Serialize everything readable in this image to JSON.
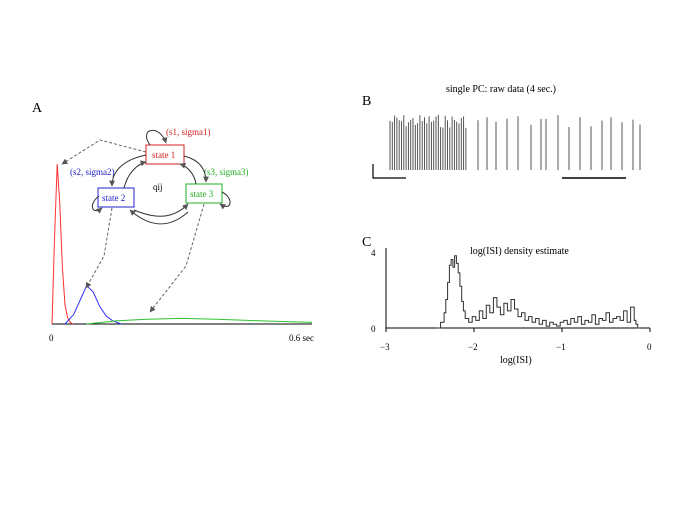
{
  "panel_a": {
    "label": "A",
    "states": [
      {
        "name": "state 1",
        "params": "(s1, sigma1)",
        "color": "#d42020"
      },
      {
        "name": "state 2",
        "params": "(s2, sigma2)",
        "color": "#2020c8"
      },
      {
        "name": "state 3",
        "params": "(s3, sigma3)",
        "color": "#1fb01f"
      }
    ],
    "transition_label": "qij",
    "x_start": "0",
    "x_end": "0.6 sec"
  },
  "panel_b": {
    "label": "B",
    "title": "single PC: raw data (4 sec.)"
  },
  "panel_c": {
    "label": "C",
    "title": "log(ISI) density estimate",
    "xlabel": "log(ISI)",
    "x_ticks": [
      "−3",
      "−2",
      "−1",
      "0"
    ],
    "y_ticks": [
      "0",
      "4"
    ]
  },
  "chart_data": [
    {
      "type": "line",
      "title": "",
      "x_range": [
        0,
        0.6
      ],
      "y_range": [
        0,
        1
      ],
      "series": [
        {
          "color": "#ff3030",
          "x": [
            0,
            0.006,
            0.012,
            0.018,
            0.024,
            0.03,
            0.036,
            0.042,
            0.048
          ],
          "y": [
            0,
            0.55,
            1.0,
            0.75,
            0.35,
            0.12,
            0.04,
            0.01,
            0
          ]
        },
        {
          "color": "#3030ff",
          "x": [
            0.03,
            0.05,
            0.065,
            0.08,
            0.095,
            0.11,
            0.125,
            0.14,
            0.16
          ],
          "y": [
            0,
            0.06,
            0.15,
            0.24,
            0.2,
            0.11,
            0.05,
            0.02,
            0
          ]
        },
        {
          "color": "#30c030",
          "x": [
            0.08,
            0.15,
            0.22,
            0.3,
            0.38,
            0.46,
            0.54,
            0.6
          ],
          "y": [
            0,
            0.02,
            0.03,
            0.035,
            0.03,
            0.022,
            0.015,
            0.01
          ]
        }
      ]
    },
    {
      "type": "line",
      "title": "log(ISI) density estimate",
      "xlabel": "log(ISI)",
      "ylim": [
        0,
        4
      ],
      "xlim": [
        -3,
        0
      ],
      "series": [
        {
          "color": "#303030",
          "x": [
            -2.42,
            -2.38,
            -2.34,
            -2.32,
            -2.3,
            -2.28,
            -2.26,
            -2.24,
            -2.22,
            -2.2,
            -2.18,
            -2.16,
            -2.14,
            -2.12,
            -2.1,
            -2.06,
            -2.02,
            -1.98,
            -1.94,
            -1.9,
            -1.86,
            -1.82,
            -1.78,
            -1.74,
            -1.7,
            -1.66,
            -1.62,
            -1.58,
            -1.54,
            -1.5,
            -1.46,
            -1.42,
            -1.38,
            -1.34,
            -1.3,
            -1.26,
            -1.22,
            -1.18,
            -1.14,
            -1.1,
            -1.06,
            -1.02,
            -0.98,
            -0.94,
            -0.9,
            -0.86,
            -0.82,
            -0.78,
            -0.74,
            -0.7,
            -0.66,
            -0.62,
            -0.58,
            -0.54,
            -0.5,
            -0.46,
            -0.42,
            -0.38,
            -0.34,
            -0.3,
            -0.26,
            -0.22,
            -0.18,
            -0.16,
            -0.14
          ],
          "y": [
            0,
            0.3,
            0.8,
            1.5,
            2.4,
            3.3,
            3.6,
            3.2,
            3.8,
            3.4,
            2.9,
            2.2,
            1.4,
            0.9,
            0.5,
            0.3,
            0.6,
            0.4,
            0.9,
            0.5,
            1.2,
            0.8,
            1.6,
            1.1,
            0.7,
            1.3,
            0.9,
            1.5,
            1.0,
            0.6,
            0.8,
            0.4,
            0.6,
            0.3,
            0.5,
            0.2,
            0.4,
            0.1,
            0.3,
            0.2,
            0.1,
            0.3,
            0.4,
            0.2,
            0.5,
            0.3,
            0.6,
            0.2,
            0.4,
            0.3,
            0.7,
            0.2,
            0.5,
            0.4,
            0.8,
            0.3,
            0.5,
            0.6,
            0.4,
            0.9,
            0.3,
            1.1,
            0.4,
            0.2,
            0
          ]
        }
      ]
    }
  ]
}
